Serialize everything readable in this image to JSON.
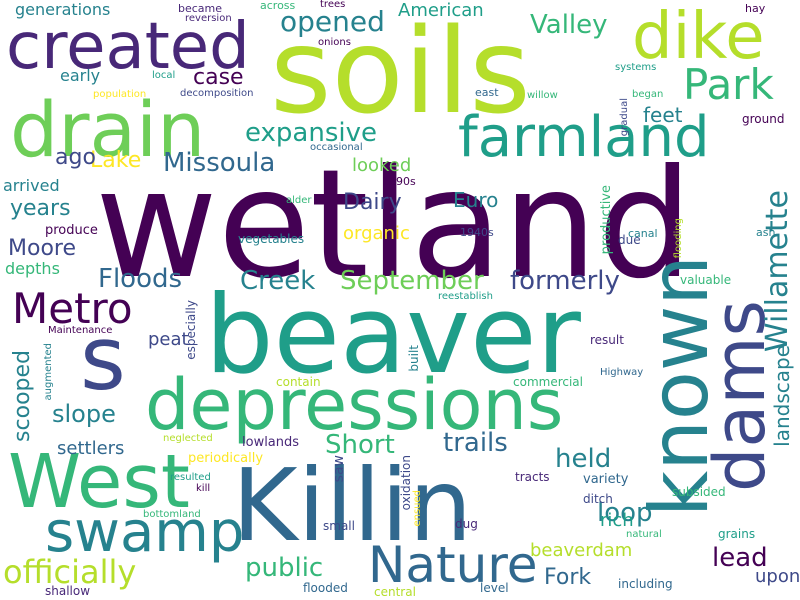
{
  "colors": {
    "background": "#ffffff",
    "palette": [
      "#440154",
      "#482878",
      "#3e4989",
      "#31688e",
      "#26828e",
      "#1f9e89",
      "#35b779",
      "#6ece58",
      "#b5de2b",
      "#fde725"
    ]
  },
  "words": [
    {
      "text": "wetland",
      "weight": 1.0,
      "color": "#440154"
    },
    {
      "text": "soils",
      "weight": 0.8,
      "color": "#b5de2b"
    },
    {
      "text": "beaver",
      "weight": 0.75,
      "color": "#1f9e89"
    },
    {
      "text": "Killin",
      "weight": 0.7,
      "color": "#31688e"
    },
    {
      "text": "known",
      "weight": 0.65,
      "color": "#26828e"
    },
    {
      "text": "s",
      "weight": 0.6,
      "color": "#3e4989"
    },
    {
      "text": "depressions",
      "weight": 0.55,
      "color": "#35b779"
    },
    {
      "text": "West",
      "weight": 0.55,
      "color": "#35b779"
    },
    {
      "text": "drain",
      "weight": 0.55,
      "color": "#6ece58"
    },
    {
      "text": "created",
      "weight": 0.5,
      "color": "#482878"
    },
    {
      "text": "dams",
      "weight": 0.5,
      "color": "#3e4989"
    },
    {
      "text": "dike",
      "weight": 0.48,
      "color": "#b5de2b"
    },
    {
      "text": "farmland",
      "weight": 0.45,
      "color": "#1f9e89"
    },
    {
      "text": "swamp",
      "weight": 0.42,
      "color": "#26828e"
    },
    {
      "text": "Nature",
      "weight": 0.4,
      "color": "#31688e"
    },
    {
      "text": "Metro",
      "weight": 0.35,
      "color": "#440154"
    },
    {
      "text": "Park",
      "weight": 0.33,
      "color": "#35b779"
    },
    {
      "text": "Willamette",
      "weight": 0.3,
      "color": "#26828e"
    },
    {
      "text": "officially",
      "weight": 0.3,
      "color": "#b5de2b"
    },
    {
      "text": "Missoula",
      "weight": 0.28,
      "color": "#31688e"
    },
    {
      "text": "expansive",
      "weight": 0.28,
      "color": "#1f9e89"
    },
    {
      "text": "opened",
      "weight": 0.28,
      "color": "#26828e"
    },
    {
      "text": "Valley",
      "weight": 0.26,
      "color": "#35b779"
    },
    {
      "text": "Floods",
      "weight": 0.26,
      "color": "#31688e"
    },
    {
      "text": "Creek",
      "weight": 0.26,
      "color": "#26828e"
    },
    {
      "text": "September",
      "weight": 0.26,
      "color": "#6ece58"
    },
    {
      "text": "formerly",
      "weight": 0.26,
      "color": "#3e4989"
    },
    {
      "text": "Short",
      "weight": 0.26,
      "color": "#35b779"
    },
    {
      "text": "trails",
      "weight": 0.26,
      "color": "#31688e"
    },
    {
      "text": "held",
      "weight": 0.26,
      "color": "#26828e"
    },
    {
      "text": "public",
      "weight": 0.26,
      "color": "#35b779"
    },
    {
      "text": "loop",
      "weight": 0.26,
      "color": "#26828e"
    },
    {
      "text": "lead",
      "weight": 0.26,
      "color": "#440154"
    },
    {
      "text": "Fork",
      "weight": 0.24,
      "color": "#31688e"
    },
    {
      "text": "slope",
      "weight": 0.24,
      "color": "#26828e"
    },
    {
      "text": "landscape",
      "weight": 0.22,
      "color": "#26828e"
    },
    {
      "text": "scooped",
      "weight": 0.22,
      "color": "#26828e"
    },
    {
      "text": "Dairy",
      "weight": 0.22,
      "color": "#3e4989"
    },
    {
      "text": "Lake",
      "weight": 0.22,
      "color": "#fde725"
    },
    {
      "text": "Moore",
      "weight": 0.22,
      "color": "#3e4989"
    },
    {
      "text": "years",
      "weight": 0.2,
      "color": "#26828e"
    },
    {
      "text": "case",
      "weight": 0.2,
      "color": "#440154"
    },
    {
      "text": "ago",
      "weight": 0.2,
      "color": "#3e4989"
    },
    {
      "text": "looked",
      "weight": 0.2,
      "color": "#6ece58"
    },
    {
      "text": "organic",
      "weight": 0.2,
      "color": "#fde725"
    },
    {
      "text": "Euro",
      "weight": 0.2,
      "color": "#26828e"
    },
    {
      "text": "feet",
      "weight": 0.2,
      "color": "#26828e"
    },
    {
      "text": "settlers",
      "weight": 0.2,
      "color": "#31688e"
    },
    {
      "text": "beaverdam",
      "weight": 0.18,
      "color": "#b5de2b"
    },
    {
      "text": "rich",
      "weight": 0.18,
      "color": "#1f9e89"
    },
    {
      "text": "upon",
      "weight": 0.18,
      "color": "#3e4989"
    },
    {
      "text": "peat",
      "weight": 0.18,
      "color": "#3e4989"
    },
    {
      "text": "American",
      "weight": 0.18,
      "color": "#1f9e89"
    },
    {
      "text": "depths",
      "weight": 0.16,
      "color": "#35b779"
    },
    {
      "text": "early",
      "weight": 0.16,
      "color": "#26828e"
    },
    {
      "text": "arrived",
      "weight": 0.16,
      "color": "#26828e"
    },
    {
      "text": "generations",
      "weight": 0.16,
      "color": "#26828e"
    },
    {
      "text": "saw",
      "weight": 0.14,
      "color": "#3e4989"
    },
    {
      "text": "productive",
      "weight": 0.14,
      "color": "#35b779"
    },
    {
      "text": "variety",
      "weight": 0.13,
      "color": "#31688e"
    },
    {
      "text": "produce",
      "weight": 0.13,
      "color": "#440154"
    },
    {
      "text": "lowlands",
      "weight": 0.13,
      "color": "#482878"
    },
    {
      "text": "periodically",
      "weight": 0.13,
      "color": "#fde725"
    },
    {
      "text": "especially",
      "weight": 0.12,
      "color": "#3e4989"
    },
    {
      "text": "oxidation",
      "weight": 0.12,
      "color": "#3e4989"
    },
    {
      "text": "built",
      "weight": 0.12,
      "color": "#26828e"
    },
    {
      "text": "result",
      "weight": 0.12,
      "color": "#482878"
    },
    {
      "text": "commercial",
      "weight": 0.12,
      "color": "#35b779"
    },
    {
      "text": "contain",
      "weight": 0.12,
      "color": "#b5de2b"
    },
    {
      "text": "vegetables",
      "weight": 0.12,
      "color": "#26828e"
    },
    {
      "text": "grains",
      "weight": 0.12,
      "color": "#1f9e89"
    },
    {
      "text": "subsided",
      "weight": 0.12,
      "color": "#35b779"
    },
    {
      "text": "ditch",
      "weight": 0.12,
      "color": "#3e4989"
    },
    {
      "text": "tracts",
      "weight": 0.12,
      "color": "#482878"
    },
    {
      "text": "dug",
      "weight": 0.12,
      "color": "#482878"
    },
    {
      "text": "small",
      "weight": 0.12,
      "color": "#3e4989"
    },
    {
      "text": "shallow",
      "weight": 0.12,
      "color": "#482878"
    },
    {
      "text": "flooded",
      "weight": 0.12,
      "color": "#31688e"
    },
    {
      "text": "central",
      "weight": 0.12,
      "color": "#b5de2b"
    },
    {
      "text": "level",
      "weight": 0.12,
      "color": "#31688e"
    },
    {
      "text": "including",
      "weight": 0.12,
      "color": "#31688e"
    },
    {
      "text": "valuable",
      "weight": 0.12,
      "color": "#35b779"
    },
    {
      "text": "due",
      "weight": 0.12,
      "color": "#3e4989"
    },
    {
      "text": "ground",
      "weight": 0.12,
      "color": "#440154"
    },
    {
      "text": "1890s",
      "weight": 0.1,
      "color": "#440154"
    },
    {
      "text": "1940s",
      "weight": 0.1,
      "color": "#3e4989"
    },
    {
      "text": "canal",
      "weight": 0.1,
      "color": "#26828e"
    },
    {
      "text": "ash",
      "weight": 0.1,
      "color": "#26828e"
    },
    {
      "text": "across",
      "weight": 0.1,
      "color": "#35b779"
    },
    {
      "text": "became",
      "weight": 0.1,
      "color": "#482878"
    },
    {
      "text": "hay",
      "weight": 0.1,
      "color": "#440154"
    },
    {
      "text": "east",
      "weight": 0.1,
      "color": "#31688e"
    },
    {
      "text": "Highway",
      "weight": 0.08,
      "color": "#31688e"
    },
    {
      "text": "trees",
      "weight": 0.08,
      "color": "#440154"
    },
    {
      "text": "reversion",
      "weight": 0.08,
      "color": "#482878"
    },
    {
      "text": "onions",
      "weight": 0.08,
      "color": "#440154"
    },
    {
      "text": "local",
      "weight": 0.08,
      "color": "#1f9e89"
    },
    {
      "text": "population",
      "weight": 0.08,
      "color": "#fde725"
    },
    {
      "text": "decomposition",
      "weight": 0.08,
      "color": "#3e4989"
    },
    {
      "text": "occasional",
      "weight": 0.08,
      "color": "#31688e"
    },
    {
      "text": "willow",
      "weight": 0.08,
      "color": "#35b779"
    },
    {
      "text": "systems",
      "weight": 0.08,
      "color": "#1f9e89"
    },
    {
      "text": "began",
      "weight": 0.08,
      "color": "#35b779"
    },
    {
      "text": "gradual",
      "weight": 0.08,
      "color": "#3e4989"
    },
    {
      "text": "alder",
      "weight": 0.08,
      "color": "#35b779"
    },
    {
      "text": "reestablish",
      "weight": 0.08,
      "color": "#1f9e89"
    },
    {
      "text": "Maintenance",
      "weight": 0.08,
      "color": "#440154"
    },
    {
      "text": "augmented",
      "weight": 0.08,
      "color": "#26828e"
    },
    {
      "text": "neglected",
      "weight": 0.08,
      "color": "#b5de2b"
    },
    {
      "text": "resulted",
      "weight": 0.08,
      "color": "#1f9e89"
    },
    {
      "text": "kill",
      "weight": 0.08,
      "color": "#440154"
    },
    {
      "text": "bottomland",
      "weight": 0.08,
      "color": "#35b779"
    },
    {
      "text": "ensued",
      "weight": 0.08,
      "color": "#fde725"
    },
    {
      "text": "natural",
      "weight": 0.08,
      "color": "#35b779"
    },
    {
      "text": "flooding",
      "weight": 0.08,
      "color": "#b5de2b"
    }
  ]
}
